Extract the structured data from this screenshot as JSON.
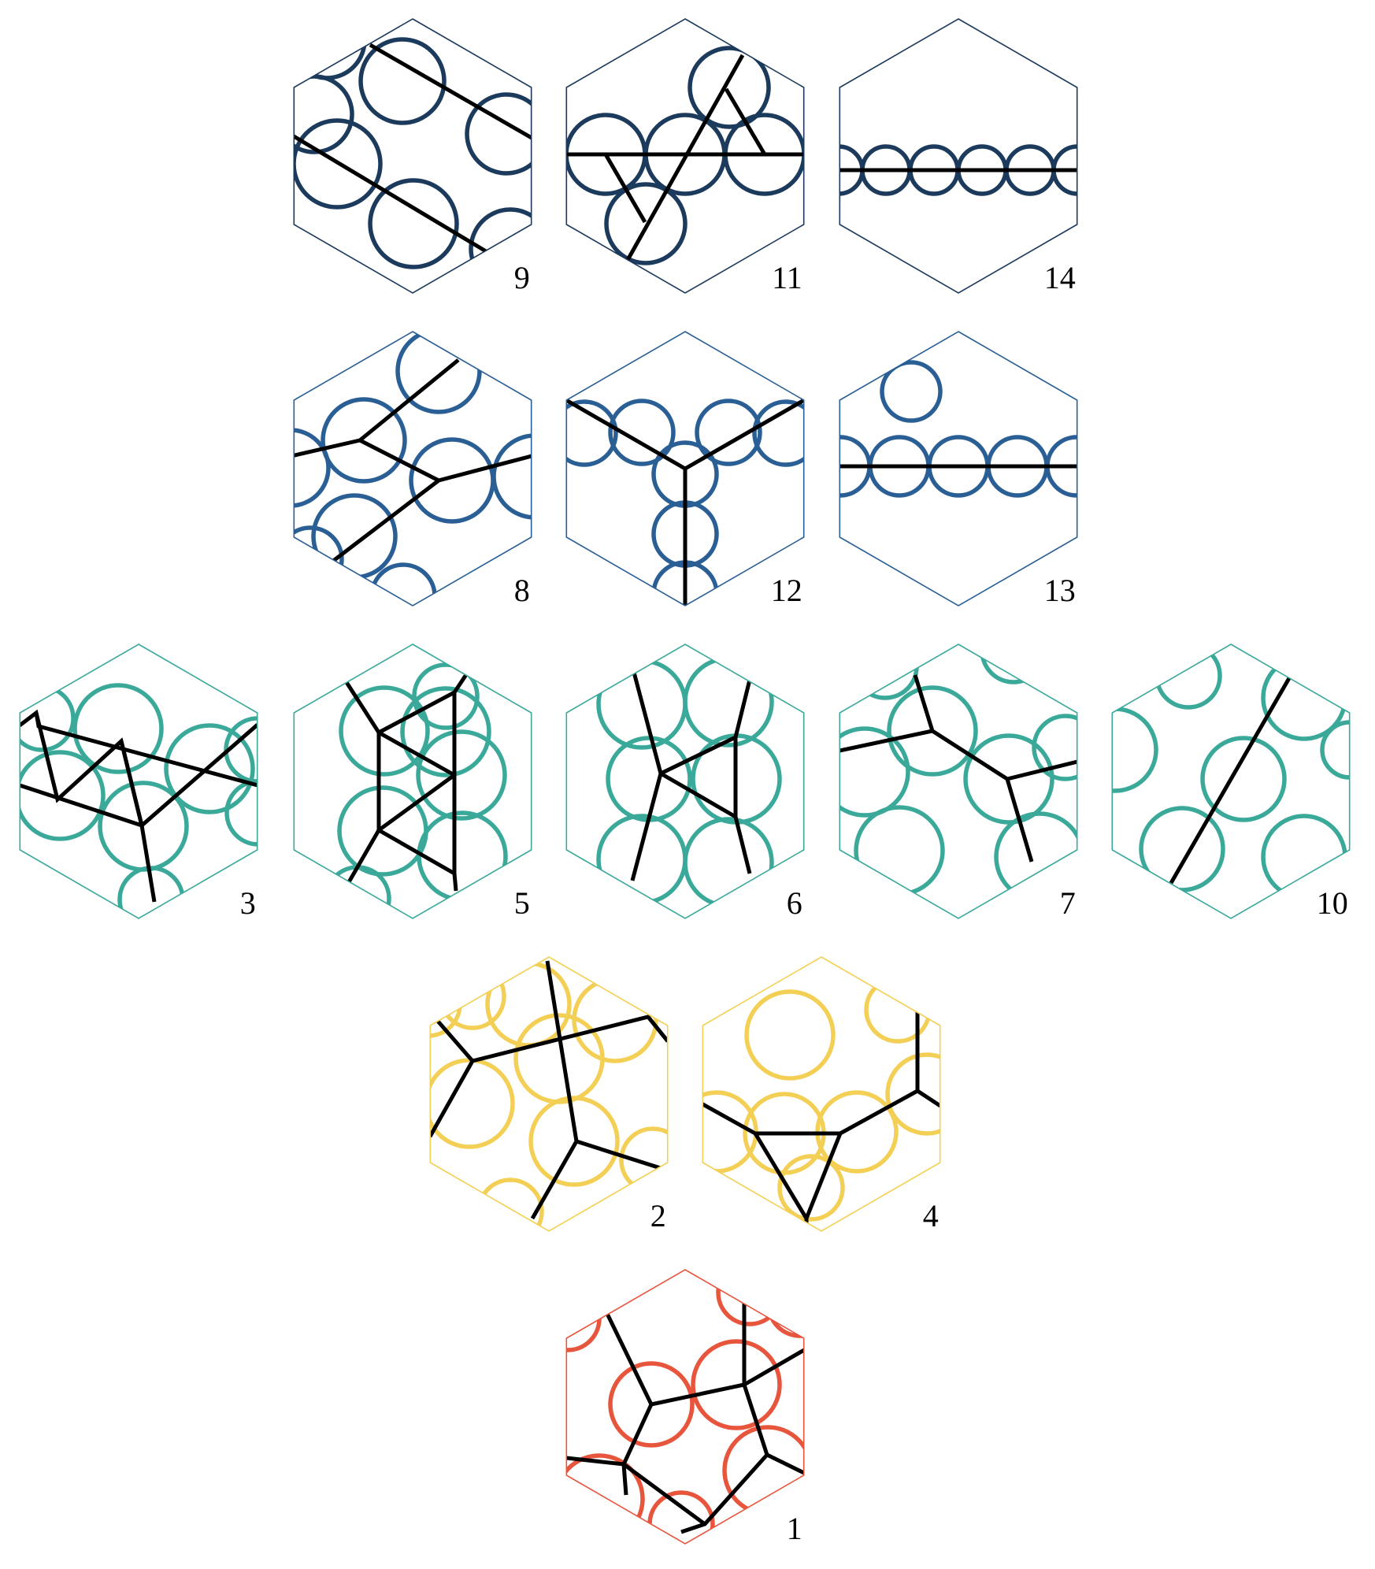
{
  "colors": {
    "tier_1": "#e8553d",
    "tier_2": "#f3d055",
    "tier_3": "#3aa99a",
    "tier_4": "#2a5f96",
    "tier_5": "#1b3a5c",
    "edges": "#000000"
  },
  "tiles": [
    {
      "label": "9",
      "tier": "tier_5"
    },
    {
      "label": "11",
      "tier": "tier_5"
    },
    {
      "label": "14",
      "tier": "tier_5"
    },
    {
      "label": "8",
      "tier": "tier_4"
    },
    {
      "label": "12",
      "tier": "tier_4"
    },
    {
      "label": "13",
      "tier": "tier_4"
    },
    {
      "label": "3",
      "tier": "tier_3"
    },
    {
      "label": "5",
      "tier": "tier_3"
    },
    {
      "label": "6",
      "tier": "tier_3"
    },
    {
      "label": "7",
      "tier": "tier_3"
    },
    {
      "label": "10",
      "tier": "tier_3"
    },
    {
      "label": "2",
      "tier": "tier_2"
    },
    {
      "label": "4",
      "tier": "tier_2"
    },
    {
      "label": "1",
      "tier": "tier_1"
    }
  ]
}
